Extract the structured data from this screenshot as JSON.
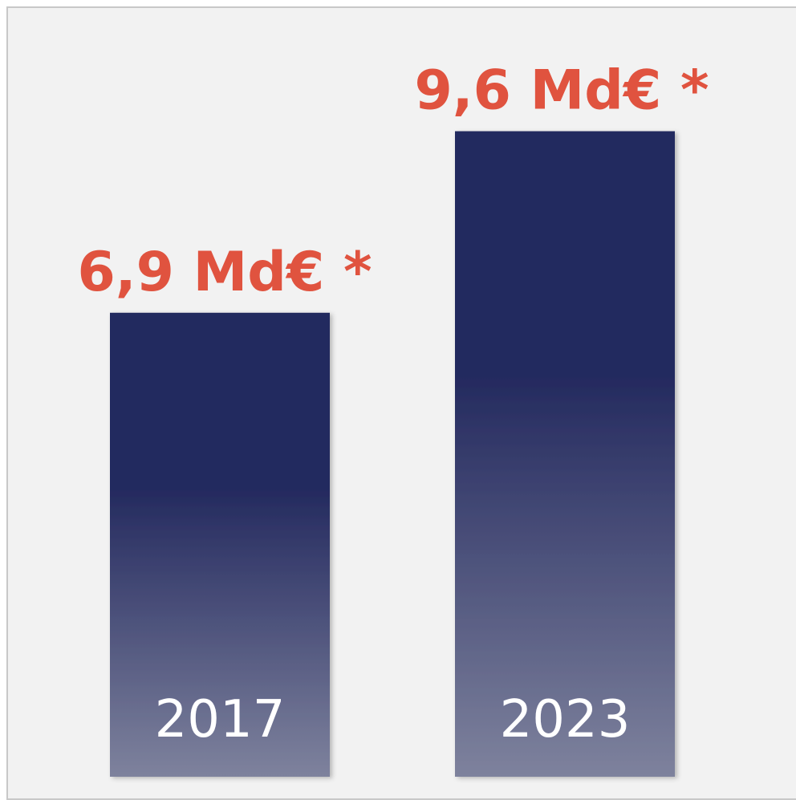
{
  "chart_data": {
    "type": "bar",
    "categories": [
      "2017",
      "2023"
    ],
    "values": [
      6.9,
      9.6
    ],
    "value_labels": [
      "6,9 Md€ *",
      "9,6 Md€ *"
    ],
    "color": "#222a5e",
    "label_color": "#e0533f"
  }
}
